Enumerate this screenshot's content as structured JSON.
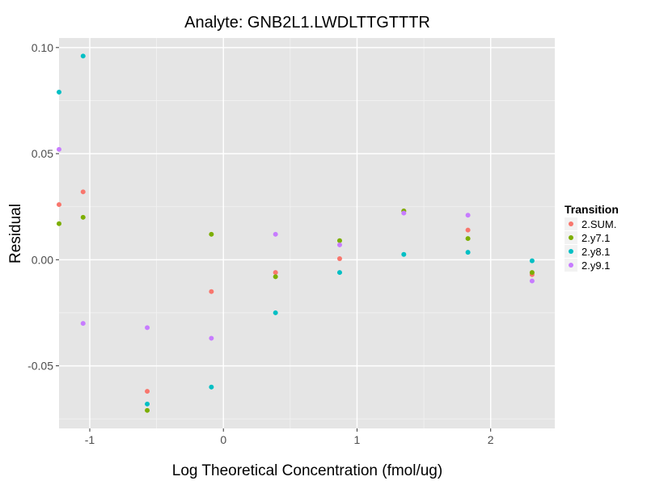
{
  "chart_data": {
    "type": "scatter",
    "title": "Analyte: GNB2L1.LWDLTTGTTTR",
    "xlabel": "Log Theoretical Concentration (fmol/ug)",
    "ylabel": "Residual",
    "xlim": [
      -1.23,
      2.48
    ],
    "ylim": [
      -0.0795,
      0.1045
    ],
    "x_ticks": [
      -1,
      0,
      1,
      2
    ],
    "x_tick_labels": [
      "-1",
      "0",
      "1",
      "2"
    ],
    "y_ticks": [
      -0.05,
      0.0,
      0.05,
      0.1
    ],
    "y_tick_labels": [
      "-0.05",
      "0.00",
      "0.05",
      "0.10"
    ],
    "grid": true,
    "legend": {
      "title": "Transition",
      "placement": "right"
    },
    "series": [
      {
        "name": "2.SUM.",
        "color": "#F8766D",
        "points": [
          [
            -1.23,
            0.026
          ],
          [
            -1.05,
            0.032
          ],
          [
            -0.57,
            -0.062
          ],
          [
            -0.09,
            -0.015
          ],
          [
            0.39,
            -0.006
          ],
          [
            0.87,
            0.0005
          ],
          [
            1.35,
            0.023
          ],
          [
            1.83,
            0.014
          ],
          [
            2.31,
            -0.007
          ]
        ]
      },
      {
        "name": "2.y7.1",
        "color": "#7CAE00",
        "points": [
          [
            -1.23,
            0.017
          ],
          [
            -1.05,
            0.02
          ],
          [
            -0.57,
            -0.071
          ],
          [
            -0.09,
            0.012
          ],
          [
            0.39,
            -0.008
          ],
          [
            0.87,
            0.009
          ],
          [
            1.35,
            0.023
          ],
          [
            1.83,
            0.01
          ],
          [
            2.31,
            -0.006
          ]
        ]
      },
      {
        "name": "2.y8.1",
        "color": "#00BFC4",
        "points": [
          [
            -1.23,
            0.079
          ],
          [
            -1.05,
            0.096
          ],
          [
            -0.57,
            -0.068
          ],
          [
            -0.09,
            -0.06
          ],
          [
            0.39,
            -0.025
          ],
          [
            0.87,
            -0.006
          ],
          [
            1.35,
            0.0025
          ],
          [
            1.83,
            0.0035
          ],
          [
            2.31,
            -0.0005
          ]
        ]
      },
      {
        "name": "2.y9.1",
        "color": "#C77CFF",
        "points": [
          [
            -1.23,
            0.052
          ],
          [
            -1.05,
            -0.03
          ],
          [
            -0.57,
            -0.032
          ],
          [
            -0.09,
            -0.037
          ],
          [
            0.39,
            0.012
          ],
          [
            0.87,
            0.007
          ],
          [
            1.35,
            0.022
          ],
          [
            1.83,
            0.021
          ],
          [
            2.31,
            -0.01
          ]
        ]
      }
    ]
  }
}
